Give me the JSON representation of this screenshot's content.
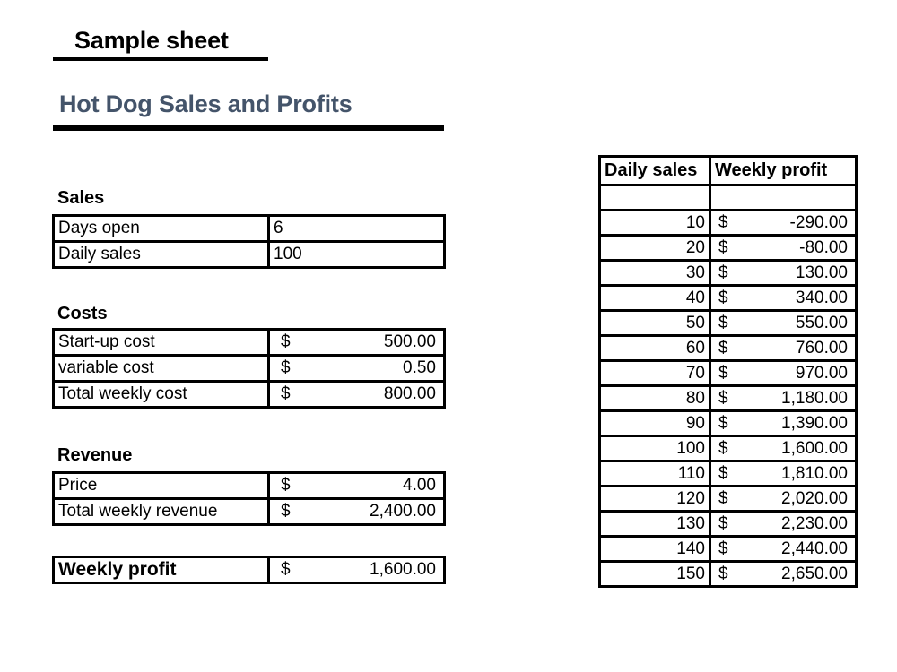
{
  "sheet_title": "Sample sheet",
  "doc_title": "Hot Dog Sales and Profits",
  "colors": {
    "doc_title": "#44546A",
    "border": "#000000"
  },
  "sales": {
    "heading": "Sales",
    "rows": [
      {
        "label": "Days open",
        "value": "6"
      },
      {
        "label": "Daily sales",
        "value": "100"
      }
    ]
  },
  "costs": {
    "heading": "Costs",
    "rows": [
      {
        "label": "Start-up cost",
        "currency": "$",
        "value": "500.00"
      },
      {
        "label": "variable cost",
        "currency": "$",
        "value": "0.50"
      },
      {
        "label": "Total weekly cost",
        "currency": "$",
        "value": "800.00"
      }
    ]
  },
  "revenue": {
    "heading": "Revenue",
    "rows": [
      {
        "label": "Price",
        "currency": "$",
        "value": "4.00"
      },
      {
        "label": "Total weekly revenue",
        "currency": "$",
        "value": "2,400.00"
      }
    ]
  },
  "weekly_profit": {
    "label": "Weekly profit",
    "currency": "$",
    "value": "1,600.00"
  },
  "profit_table": {
    "headers": [
      "Daily sales",
      "Weekly profit"
    ],
    "rows": [
      {
        "daily_sales": "10",
        "currency": "$",
        "weekly_profit": "-290.00"
      },
      {
        "daily_sales": "20",
        "currency": "$",
        "weekly_profit": "-80.00"
      },
      {
        "daily_sales": "30",
        "currency": "$",
        "weekly_profit": "130.00"
      },
      {
        "daily_sales": "40",
        "currency": "$",
        "weekly_profit": "340.00"
      },
      {
        "daily_sales": "50",
        "currency": "$",
        "weekly_profit": "550.00"
      },
      {
        "daily_sales": "60",
        "currency": "$",
        "weekly_profit": "760.00"
      },
      {
        "daily_sales": "70",
        "currency": "$",
        "weekly_profit": "970.00"
      },
      {
        "daily_sales": "80",
        "currency": "$",
        "weekly_profit": "1,180.00"
      },
      {
        "daily_sales": "90",
        "currency": "$",
        "weekly_profit": "1,390.00"
      },
      {
        "daily_sales": "100",
        "currency": "$",
        "weekly_profit": "1,600.00"
      },
      {
        "daily_sales": "110",
        "currency": "$",
        "weekly_profit": "1,810.00"
      },
      {
        "daily_sales": "120",
        "currency": "$",
        "weekly_profit": "2,020.00"
      },
      {
        "daily_sales": "130",
        "currency": "$",
        "weekly_profit": "2,230.00"
      },
      {
        "daily_sales": "140",
        "currency": "$",
        "weekly_profit": "2,440.00"
      },
      {
        "daily_sales": "150",
        "currency": "$",
        "weekly_profit": "2,650.00"
      }
    ]
  }
}
